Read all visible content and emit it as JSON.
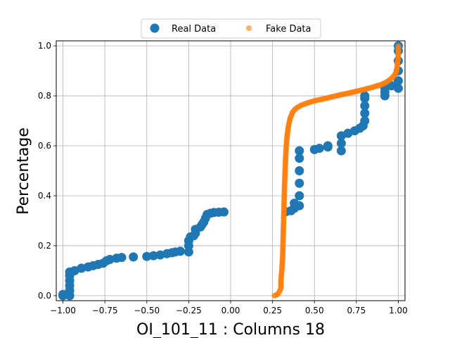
{
  "chart_data": {
    "type": "scatter",
    "title": "",
    "xlabel": "OI_101_11 : Columns 18",
    "ylabel": "Percentage",
    "xlim": [
      -1.04,
      1.04
    ],
    "ylim": [
      -0.02,
      1.02
    ],
    "xticks": [
      -1.0,
      -0.75,
      -0.5,
      -0.25,
      0.0,
      0.25,
      0.5,
      0.75,
      1.0
    ],
    "xtick_labels": [
      "−1.00",
      "−0.75",
      "−0.50",
      "−0.25",
      "0.00",
      "0.25",
      "0.50",
      "0.75",
      "1.00"
    ],
    "yticks": [
      0.0,
      0.2,
      0.4,
      0.6,
      0.8,
      1.0
    ],
    "ytick_labels": [
      "0.0",
      "0.2",
      "0.4",
      "0.6",
      "0.8",
      "1.0"
    ],
    "grid": true,
    "legend_position": "top-center",
    "series": [
      {
        "name": "Real Data",
        "color": "#1f77b4",
        "marker": "large-circle",
        "points": [
          [
            -1.0,
            0.0
          ],
          [
            -1.0,
            0.005
          ],
          [
            -0.96,
            0.0
          ],
          [
            -0.96,
            0.02
          ],
          [
            -0.96,
            0.04
          ],
          [
            -0.96,
            0.06
          ],
          [
            -0.96,
            0.08
          ],
          [
            -0.96,
            0.095
          ],
          [
            -0.93,
            0.1
          ],
          [
            -0.89,
            0.11
          ],
          [
            -0.85,
            0.115
          ],
          [
            -0.82,
            0.12
          ],
          [
            -0.79,
            0.125
          ],
          [
            -0.76,
            0.13
          ],
          [
            -0.74,
            0.14
          ],
          [
            -0.72,
            0.145
          ],
          [
            -0.68,
            0.15
          ],
          [
            -0.65,
            0.153
          ],
          [
            -0.58,
            0.155
          ],
          [
            -0.5,
            0.157
          ],
          [
            -0.46,
            0.16
          ],
          [
            -0.42,
            0.163
          ],
          [
            -0.38,
            0.168
          ],
          [
            -0.35,
            0.172
          ],
          [
            -0.33,
            0.175
          ],
          [
            -0.3,
            0.178
          ],
          [
            -0.25,
            0.175
          ],
          [
            -0.25,
            0.2
          ],
          [
            -0.25,
            0.22
          ],
          [
            -0.24,
            0.235
          ],
          [
            -0.22,
            0.24
          ],
          [
            -0.21,
            0.25
          ],
          [
            -0.21,
            0.265
          ],
          [
            -0.18,
            0.275
          ],
          [
            -0.17,
            0.285
          ],
          [
            -0.16,
            0.295
          ],
          [
            -0.15,
            0.31
          ],
          [
            -0.14,
            0.325
          ],
          [
            -0.12,
            0.33
          ],
          [
            -0.1,
            0.333
          ],
          [
            -0.07,
            0.334
          ],
          [
            -0.04,
            0.335
          ],
          [
            0.33,
            0.336
          ],
          [
            0.36,
            0.34
          ],
          [
            0.38,
            0.35
          ],
          [
            0.38,
            0.37
          ],
          [
            0.41,
            0.36
          ],
          [
            0.41,
            0.4
          ],
          [
            0.41,
            0.45
          ],
          [
            0.41,
            0.5
          ],
          [
            0.41,
            0.55
          ],
          [
            0.41,
            0.58
          ],
          [
            0.5,
            0.585
          ],
          [
            0.53,
            0.59
          ],
          [
            0.58,
            0.595
          ],
          [
            0.58,
            0.6
          ],
          [
            0.66,
            0.58
          ],
          [
            0.66,
            0.61
          ],
          [
            0.66,
            0.64
          ],
          [
            0.7,
            0.65
          ],
          [
            0.74,
            0.66
          ],
          [
            0.77,
            0.67
          ],
          [
            0.79,
            0.68
          ],
          [
            0.8,
            0.7
          ],
          [
            0.8,
            0.73
          ],
          [
            0.8,
            0.76
          ],
          [
            0.8,
            0.79
          ],
          [
            0.8,
            0.8
          ],
          [
            0.92,
            0.8
          ],
          [
            0.92,
            0.815
          ],
          [
            0.92,
            0.83
          ],
          [
            0.96,
            0.84
          ],
          [
            1.0,
            0.83
          ],
          [
            1.0,
            0.86
          ],
          [
            1.0,
            0.9
          ],
          [
            1.0,
            0.94
          ],
          [
            1.0,
            0.98
          ],
          [
            1.0,
            1.0
          ]
        ]
      },
      {
        "name": "Fake Data",
        "color": "#ff7f0e",
        "marker": "small-circle",
        "points": [
          [
            0.26,
            0.0
          ],
          [
            0.28,
            0.005
          ],
          [
            0.29,
            0.015
          ],
          [
            0.3,
            0.03
          ],
          [
            0.3,
            0.06
          ],
          [
            0.305,
            0.1
          ],
          [
            0.31,
            0.15
          ],
          [
            0.312,
            0.2
          ],
          [
            0.314,
            0.25
          ],
          [
            0.316,
            0.3
          ],
          [
            0.318,
            0.35
          ],
          [
            0.32,
            0.4
          ],
          [
            0.322,
            0.45
          ],
          [
            0.325,
            0.5
          ],
          [
            0.328,
            0.55
          ],
          [
            0.332,
            0.6
          ],
          [
            0.337,
            0.64
          ],
          [
            0.345,
            0.68
          ],
          [
            0.355,
            0.71
          ],
          [
            0.37,
            0.735
          ],
          [
            0.39,
            0.75
          ],
          [
            0.42,
            0.762
          ],
          [
            0.46,
            0.772
          ],
          [
            0.5,
            0.78
          ],
          [
            0.55,
            0.787
          ],
          [
            0.6,
            0.795
          ],
          [
            0.65,
            0.803
          ],
          [
            0.7,
            0.81
          ],
          [
            0.75,
            0.818
          ],
          [
            0.8,
            0.826
          ],
          [
            0.85,
            0.835
          ],
          [
            0.9,
            0.845
          ],
          [
            0.93,
            0.855
          ],
          [
            0.96,
            0.87
          ],
          [
            0.98,
            0.885
          ],
          [
            0.99,
            0.9
          ],
          [
            0.995,
            0.93
          ],
          [
            1.0,
            0.96
          ],
          [
            1.0,
            1.0
          ]
        ]
      }
    ]
  }
}
